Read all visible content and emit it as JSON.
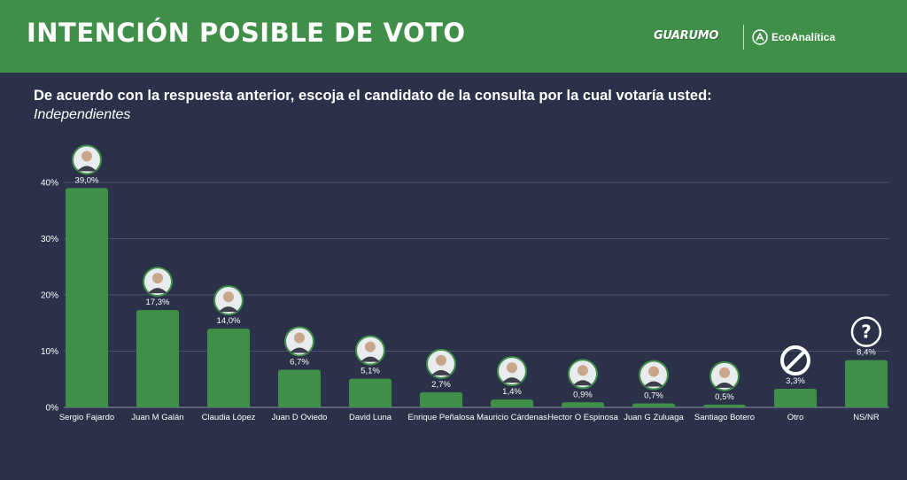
{
  "header": {
    "title": "INTENCIÓN POSIBLE DE VOTO",
    "brand_guarumo": "GUARUMO",
    "brand_eco": "EcoAnalítica"
  },
  "question": {
    "text": "De acuerdo con la respuesta anterior, escoja el candidato de la consulta por la cual votaría usted:",
    "subtitle": "Independientes"
  },
  "colors": {
    "header_bg": "#3f8f49",
    "page_bg": "#2a3149",
    "bar": "#3f8f49"
  },
  "chart_data": {
    "type": "bar",
    "title": "",
    "xlabel": "",
    "ylabel": "",
    "ylim": [
      0,
      40
    ],
    "yticks": [
      "0%",
      "10%",
      "20%",
      "30%",
      "40%"
    ],
    "ytick_values": [
      0,
      10,
      20,
      30,
      40
    ],
    "grid": true,
    "categories": [
      "Sergio Fajardo",
      "Juan M Galán",
      "Claudia López",
      "Juan D Oviedo",
      "David Luna",
      "Enrique Peñalosa",
      "Mauricio Cárdenas",
      "Hector O Espinosa",
      "Juan G Zuluaga",
      "Santiago Botero",
      "Otro",
      "NS/NR"
    ],
    "values": [
      39.0,
      17.3,
      14.0,
      6.7,
      5.1,
      2.7,
      1.4,
      0.9,
      0.7,
      0.5,
      3.3,
      8.4
    ],
    "value_labels": [
      "39,0%",
      "17,3%",
      "14,0%",
      "6,7%",
      "5,1%",
      "2,7%",
      "1,4%",
      "0,9%",
      "0,7%",
      "0,5%",
      "3,3%",
      "8,4%"
    ],
    "marker_icons": [
      "candidate-photo",
      "candidate-photo",
      "candidate-photo",
      "candidate-photo",
      "candidate-photo",
      "candidate-photo",
      "candidate-photo",
      "candidate-photo",
      "candidate-photo",
      "candidate-photo",
      "prohibited-icon",
      "question-icon"
    ]
  }
}
